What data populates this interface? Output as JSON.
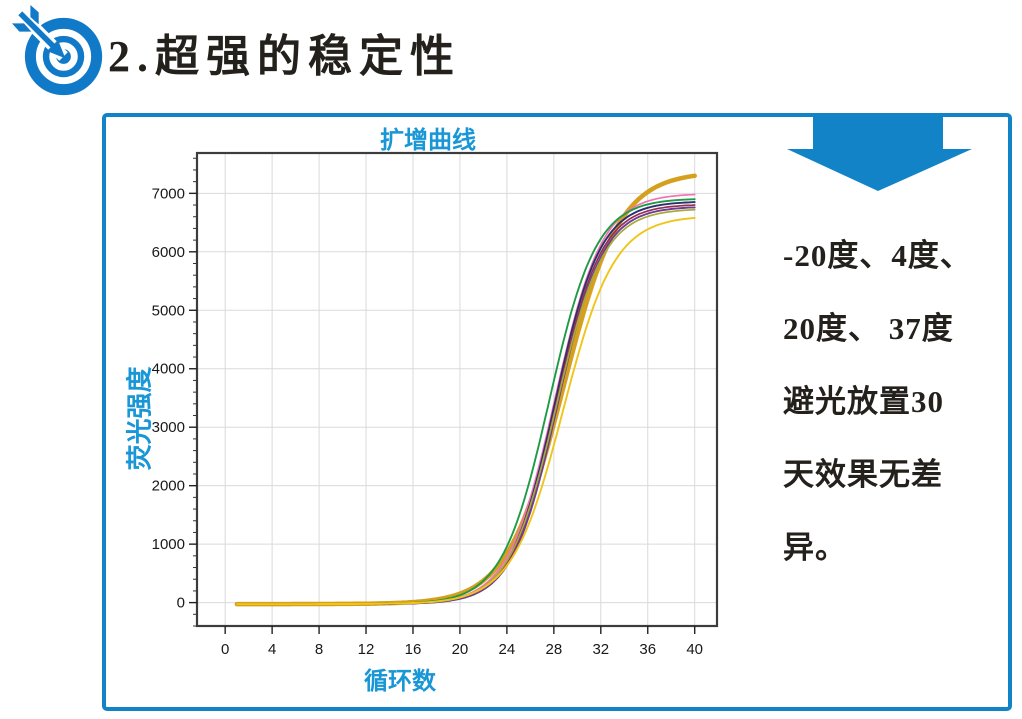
{
  "header": {
    "title": "2.超强的稳定性",
    "logo": "target-with-dart"
  },
  "colors": {
    "brand_blue": "#1383C8",
    "logo_blue": "#1079C8",
    "chart_label_blue": "#1996D6",
    "axis_dark": "#3c3c3c",
    "grid_gray": "#dadada",
    "text_black": "#24201b"
  },
  "note": {
    "lines": [
      "-20度、4度、",
      "20度、 37度",
      "避光放置30",
      "天效果无差",
      "异。"
    ]
  },
  "chart_data": {
    "type": "line",
    "title": "扩增曲线",
    "xlabel": "循环数",
    "ylabel": "荧光强度",
    "x_ticks": [
      0,
      4,
      8,
      12,
      16,
      20,
      24,
      28,
      32,
      36,
      40
    ],
    "y_ticks": [
      0,
      1000,
      2000,
      3000,
      4000,
      5000,
      6000,
      7000
    ],
    "y_minor_step": 200,
    "y_minor_range": [
      -400,
      7600
    ],
    "xlim": [
      -2.4,
      41.9
    ],
    "ylim": [
      -400,
      7690
    ],
    "grid": true,
    "legend": "none",
    "cycle_start": 1,
    "cycle_end": 40,
    "curve_model": "logistic, value = baseline + (plateau-baseline)*sig(steepness*(cycle-midpoint_cycle)), flat near 0 until ~cycle 20, exponential rise cycles 21-31, plateau by cycle 40",
    "series": [
      {
        "name": "thick-gold",
        "color": "#D5A01E",
        "width": 4.5,
        "baseline": -25,
        "plateau": 7300,
        "midpoint_cycle": 28.8,
        "steepness": 0.42
      },
      {
        "name": "pink",
        "color": "#F273B2",
        "width": 1.7,
        "baseline": -25,
        "plateau": 6980,
        "midpoint_cycle": 28.1,
        "steepness": 0.5
      },
      {
        "name": "green",
        "color": "#1E9B45",
        "width": 1.9,
        "baseline": -25,
        "plateau": 6900,
        "midpoint_cycle": 27.6,
        "steepness": 0.5
      },
      {
        "name": "navy",
        "color": "#2D2F6E",
        "width": 1.9,
        "baseline": -25,
        "plateau": 6850,
        "midpoint_cycle": 28.1,
        "steepness": 0.52
      },
      {
        "name": "maroon",
        "color": "#93304F",
        "width": 1.7,
        "baseline": -25,
        "plateau": 6800,
        "midpoint_cycle": 28.2,
        "steepness": 0.52
      },
      {
        "name": "purple",
        "color": "#6C3E92",
        "width": 1.9,
        "baseline": -25,
        "plateau": 6760,
        "midpoint_cycle": 28.3,
        "steepness": 0.52
      },
      {
        "name": "olive",
        "color": "#A8A93C",
        "width": 1.7,
        "baseline": -25,
        "plateau": 6720,
        "midpoint_cycle": 28.2,
        "steepness": 0.5
      },
      {
        "name": "yellow",
        "color": "#F0C419",
        "width": 1.9,
        "baseline": -25,
        "plateau": 6580,
        "midpoint_cycle": 28.8,
        "steepness": 0.46
      }
    ]
  }
}
